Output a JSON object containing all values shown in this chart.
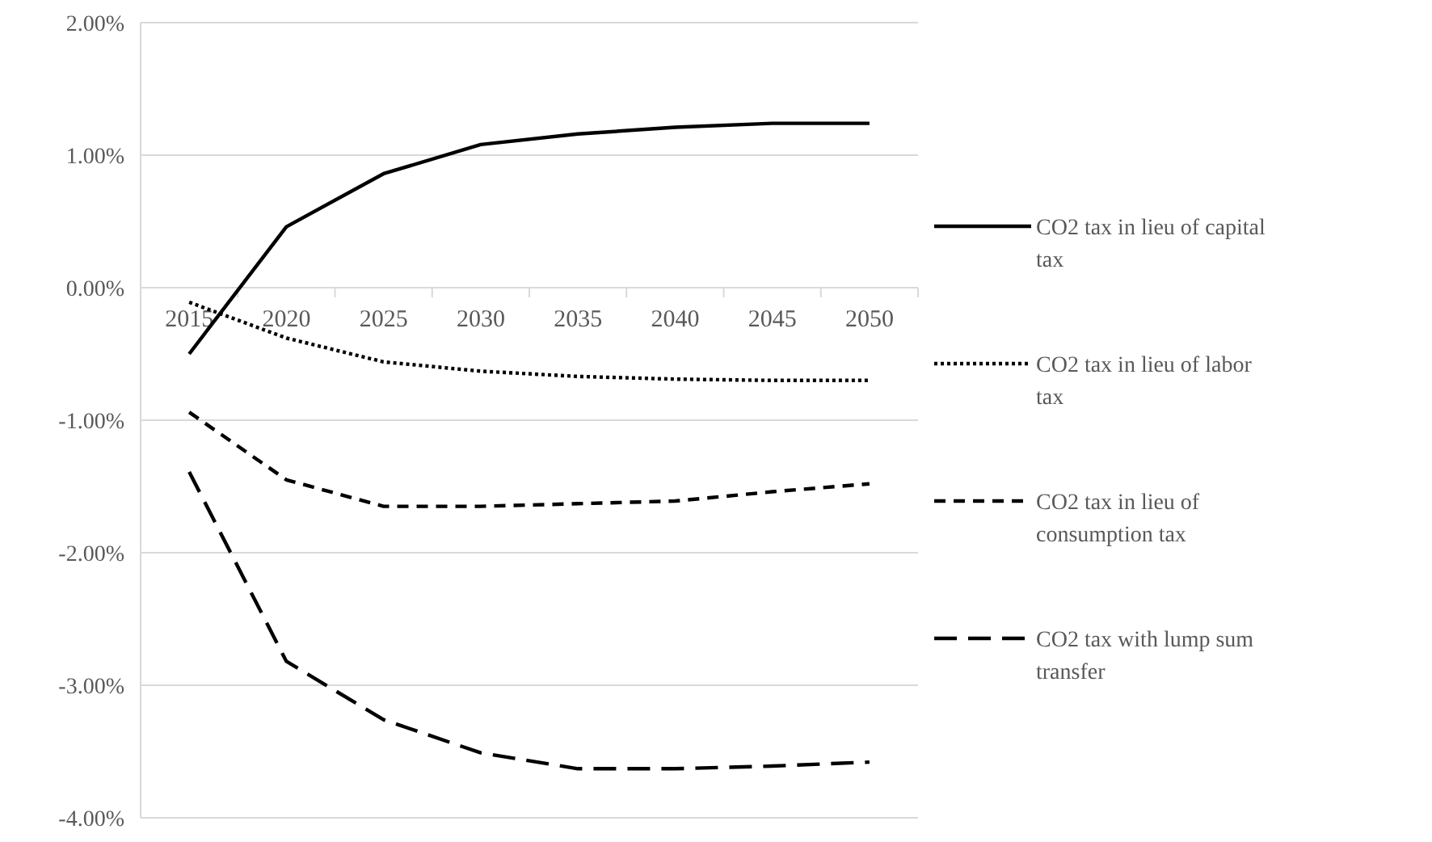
{
  "chart_data": {
    "type": "line",
    "categories": [
      "2015",
      "2020",
      "2025",
      "2030",
      "2035",
      "2040",
      "2045",
      "2050"
    ],
    "ylim": [
      -4,
      2
    ],
    "yticks": [
      {
        "value": 2,
        "label": "2.00%"
      },
      {
        "value": 1,
        "label": "1.00%"
      },
      {
        "value": 0,
        "label": "0.00%"
      },
      {
        "value": -1,
        "label": "-1.00%"
      },
      {
        "value": -2,
        "label": "-2.00%"
      },
      {
        "value": -3,
        "label": "-3.00%"
      },
      {
        "value": -4,
        "label": "-4.00%"
      }
    ],
    "grid": "y",
    "legend": "right",
    "marker": "none",
    "series": [
      {
        "name": "CO2 tax in lieu of capital tax",
        "color": "#000000",
        "line_style": "solid",
        "values": [
          -0.5,
          0.46,
          0.86,
          1.08,
          1.16,
          1.21,
          1.24,
          1.24
        ]
      },
      {
        "name": "CO2 tax in lieu of labor tax",
        "color": "#000000",
        "line_style": "dotted",
        "values": [
          -0.11,
          -0.38,
          -0.56,
          -0.63,
          -0.67,
          -0.69,
          -0.7,
          -0.7
        ]
      },
      {
        "name": "CO2 tax in lieu of consumption tax",
        "color": "#000000",
        "line_style": "dashed",
        "values": [
          -0.94,
          -1.45,
          -1.65,
          -1.65,
          -1.63,
          -1.61,
          -1.54,
          -1.48
        ]
      },
      {
        "name": "CO2 tax with lump sum transfer",
        "color": "#000000",
        "line_style": "dashed",
        "values": [
          -1.39,
          -2.82,
          -3.26,
          -3.51,
          -3.63,
          -3.63,
          -3.61,
          -3.58
        ]
      }
    ]
  }
}
